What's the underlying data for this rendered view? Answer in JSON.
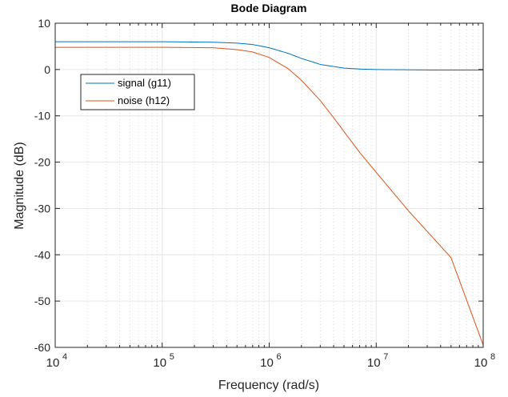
{
  "chart_data": {
    "type": "line",
    "title": "Bode Diagram",
    "xlabel": "Frequency  (rad/s)",
    "ylabel": "Magnitude (dB)",
    "xscale": "log",
    "xlim": [
      10000,
      100000000
    ],
    "ylim": [
      -60,
      10
    ],
    "grid": true,
    "minor_grid": true,
    "legend_position": "top-left",
    "x_ticks": [
      {
        "value": 10000,
        "base": "10",
        "exp": "4"
      },
      {
        "value": 100000,
        "base": "10",
        "exp": "5"
      },
      {
        "value": 1000000,
        "base": "10",
        "exp": "6"
      },
      {
        "value": 10000000,
        "base": "10",
        "exp": "7"
      },
      {
        "value": 100000000,
        "base": "10",
        "exp": "8"
      }
    ],
    "y_ticks": [
      10,
      0,
      -10,
      -20,
      -30,
      -40,
      -50,
      -60
    ],
    "series": [
      {
        "name": "signal (g11)",
        "color": "#0072BD",
        "x": [
          10000,
          100000,
          300000,
          500000,
          700000,
          1000000,
          1500000,
          2000000,
          3000000,
          5000000,
          7000000,
          10000000,
          30000000,
          100000000
        ],
        "y": [
          6.0,
          6.0,
          5.9,
          5.7,
          5.4,
          4.7,
          3.5,
          2.4,
          1.1,
          0.3,
          0.1,
          0.0,
          -0.1,
          -0.1
        ]
      },
      {
        "name": "noise (h12)",
        "color": "#D95319",
        "x": [
          10000,
          100000,
          300000,
          500000,
          700000,
          1000000,
          1500000,
          2000000,
          3000000,
          4000000,
          5000000,
          7000000,
          10000000,
          20000000,
          50000000,
          100000000
        ],
        "y": [
          4.8,
          4.8,
          4.7,
          4.3,
          3.8,
          2.6,
          0.2,
          -2.3,
          -6.7,
          -10.4,
          -13.4,
          -17.9,
          -22.2,
          -30.5,
          -40.6,
          -59.5
        ]
      }
    ]
  }
}
